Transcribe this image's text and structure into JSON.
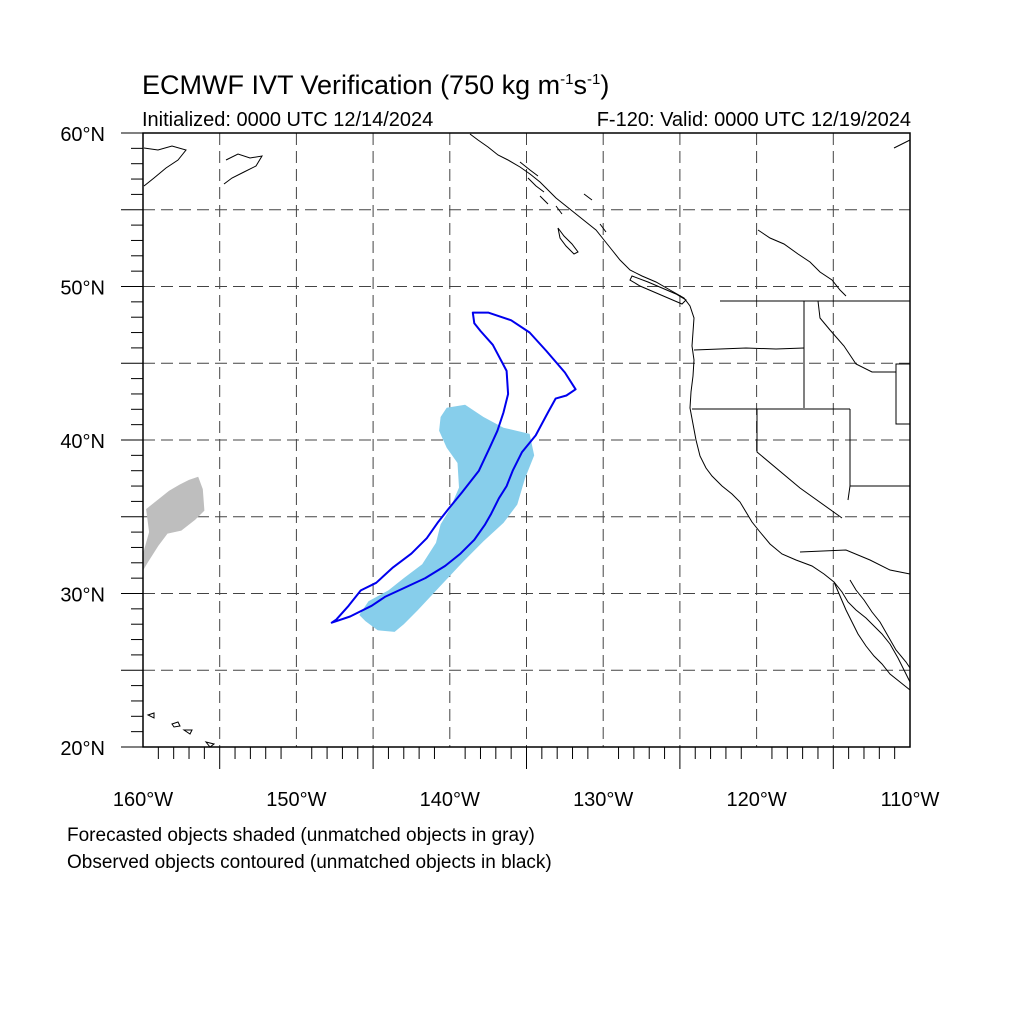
{
  "title": {
    "main": "ECMWF IVT Verification (750 kg m",
    "sup1": "-1",
    "mid": "s",
    "sup2": "-1",
    "end": ")"
  },
  "initialized": "Initialized: 0000 UTC 12/14/2024",
  "valid": "F-120: Valid: 0000 UTC 12/19/2024",
  "lat_labels": [
    "60°N",
    "50°N",
    "40°N",
    "30°N",
    "20°N"
  ],
  "lon_labels": [
    "160°W",
    "150°W",
    "140°W",
    "130°W",
    "120°W",
    "110°W"
  ],
  "notes": {
    "forecast": "Forecasted objects shaded (unmatched objects in gray)",
    "observed": "Observed objects contoured (unmatched objects in black)"
  },
  "map": {
    "extent": {
      "lon_min": -160,
      "lon_max": -110,
      "lat_min": 20,
      "lat_max": 60
    },
    "colors": {
      "forecast_matched": "#87CEEB",
      "forecast_unmatched": "#BEBEBE",
      "observed_matched": "#0000EE",
      "coast": "#000000"
    },
    "forecast_objects": [
      {
        "matched": true,
        "outline": [
          [
            -140.2,
            42.1
          ],
          [
            -139,
            42.3
          ],
          [
            -137.8,
            41.5
          ],
          [
            -136.5,
            40.8
          ],
          [
            -134.8,
            40.4
          ],
          [
            -134.5,
            39
          ],
          [
            -135.1,
            37.5
          ],
          [
            -135.6,
            35.8
          ],
          [
            -136.5,
            34.6
          ],
          [
            -137.8,
            33.4
          ],
          [
            -139.1,
            32.1
          ],
          [
            -140.6,
            30.5
          ],
          [
            -142.1,
            28.9
          ],
          [
            -143,
            28
          ],
          [
            -143.6,
            27.5
          ],
          [
            -144.7,
            27.6
          ],
          [
            -145.5,
            28.2
          ],
          [
            -145.9,
            28.6
          ],
          [
            -145.3,
            29.5
          ],
          [
            -144,
            30.2
          ],
          [
            -143,
            31
          ],
          [
            -141.8,
            31.9
          ],
          [
            -140.9,
            33.3
          ],
          [
            -140.6,
            34.5
          ],
          [
            -140,
            35.5
          ],
          [
            -139.4,
            36.9
          ],
          [
            -139.5,
            38.5
          ],
          [
            -140.2,
            39.5
          ],
          [
            -140.7,
            40.6
          ],
          [
            -140.6,
            41.5
          ]
        ]
      },
      {
        "matched": false,
        "outline": [
          [
            -157,
            37.4
          ],
          [
            -156.4,
            37.6
          ],
          [
            -156.1,
            36.8
          ],
          [
            -156,
            35.4
          ],
          [
            -156.6,
            34.8
          ],
          [
            -157.5,
            34.1
          ],
          [
            -158.4,
            33.9
          ],
          [
            -159,
            33.1
          ],
          [
            -159.7,
            32
          ],
          [
            -160,
            31.5
          ],
          [
            -160,
            32.6
          ],
          [
            -159.6,
            34
          ],
          [
            -159.8,
            35.5
          ],
          [
            -158.3,
            36.7
          ],
          [
            -157.6,
            37.1
          ]
        ]
      }
    ],
    "observed_objects": [
      {
        "matched": true,
        "outline": [
          [
            -138.5,
            48.3
          ],
          [
            -137.5,
            48.3
          ],
          [
            -136,
            47.8
          ],
          [
            -134.8,
            47
          ],
          [
            -133.7,
            45.8
          ],
          [
            -132.5,
            44.4
          ],
          [
            -131.8,
            43.3
          ],
          [
            -132.4,
            42.9
          ],
          [
            -133.1,
            42.7
          ],
          [
            -133.6,
            41.8
          ],
          [
            -134.4,
            40.3
          ],
          [
            -135.3,
            39.2
          ],
          [
            -135.9,
            38
          ],
          [
            -136.3,
            37
          ],
          [
            -136.8,
            36.2
          ],
          [
            -137.3,
            35.2
          ],
          [
            -137.7,
            34.5
          ],
          [
            -138.4,
            33.5
          ],
          [
            -139.3,
            32.6
          ],
          [
            -140.3,
            31.8
          ],
          [
            -141.6,
            31
          ],
          [
            -143.1,
            30.3
          ],
          [
            -144.2,
            29.8
          ],
          [
            -145.1,
            29.2
          ],
          [
            -146.5,
            28.5
          ],
          [
            -147.7,
            28.1
          ],
          [
            -147.4,
            28.3
          ],
          [
            -146.6,
            29.2
          ],
          [
            -145.8,
            30.2
          ],
          [
            -144.8,
            30.7
          ],
          [
            -143.7,
            31.7
          ],
          [
            -142.5,
            32.6
          ],
          [
            -141.5,
            33.6
          ],
          [
            -140.8,
            34.6
          ],
          [
            -140.1,
            35.5
          ],
          [
            -139.2,
            36.6
          ],
          [
            -138.1,
            38
          ],
          [
            -137.4,
            39.5
          ],
          [
            -136.9,
            40.6
          ],
          [
            -136.5,
            41.8
          ],
          [
            -136.2,
            43
          ],
          [
            -136.3,
            44.5
          ],
          [
            -137.2,
            46.2
          ],
          [
            -138,
            47.1
          ],
          [
            -138.4,
            47.6
          ]
        ]
      }
    ]
  }
}
